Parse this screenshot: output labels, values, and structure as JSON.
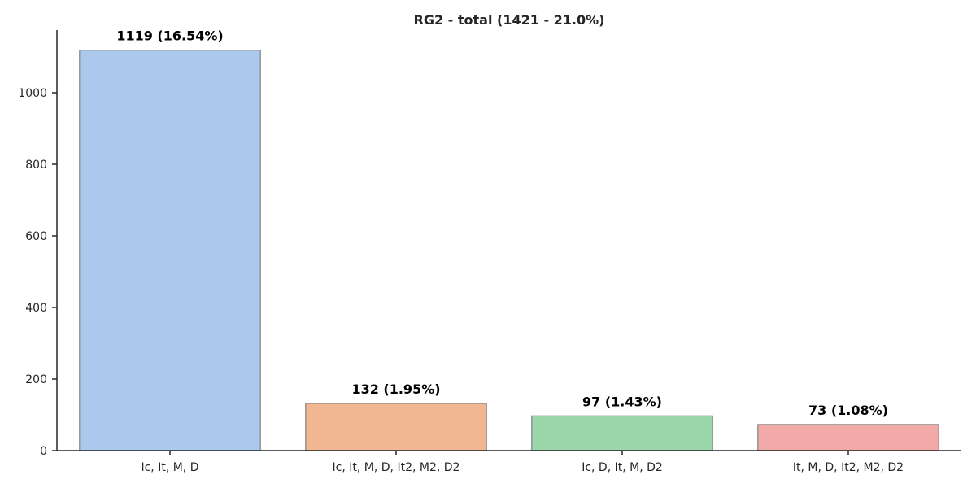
{
  "chart_data": {
    "type": "bar",
    "title": "RG2 - total (1421 - 21.0%)",
    "xlabel": "",
    "ylabel": "",
    "categories": [
      "Ic, It, M, D",
      "Ic, It, M, D, It2, M2, D2",
      "Ic, D, It, M, D2",
      "It, M, D, It2, M2, D2"
    ],
    "values": [
      1119,
      132,
      97,
      73
    ],
    "data_labels": [
      "1119 (16.54%)",
      "132 (1.95%)",
      "97 (1.43%)",
      "73 (1.08%)"
    ],
    "colors": [
      "#abc9ec",
      "#f0b792",
      "#9ad8aa",
      "#f2aaa8"
    ],
    "ylim": [
      0,
      1175
    ],
    "yticks": [
      0,
      200,
      400,
      600,
      800,
      1000
    ],
    "grid": false,
    "legend": "none"
  }
}
